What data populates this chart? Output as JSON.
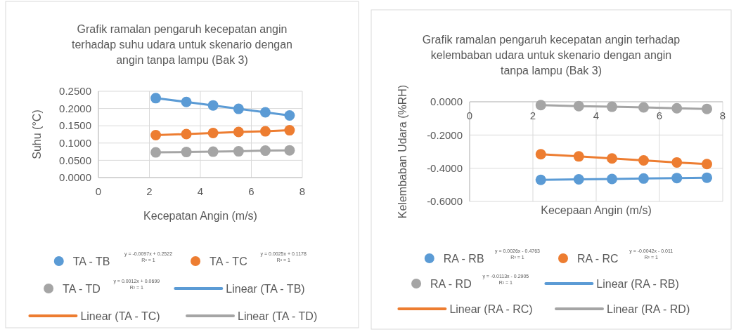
{
  "chart_data": [
    {
      "type": "scatter",
      "title": "Grafik ramalan pengaruh kecepatan angin terhadap suhu udara untuk skenario dengan angin tanpa lampu (Bak 3)",
      "xlabel": "Kecepatan Angin (m/s)",
      "ylabel": "Suhu (°C)",
      "x": [
        2.25,
        3.45,
        4.5,
        5.5,
        6.55,
        7.5
      ],
      "xlim": [
        0,
        8
      ],
      "xticks": [
        0,
        2,
        4,
        6,
        8
      ],
      "ylim": [
        0,
        0.25
      ],
      "yticks": [
        {
          "value": 0,
          "label": "0.0000"
        },
        {
          "value": 0.05,
          "label": "0.0500"
        },
        {
          "value": 0.1,
          "label": "0.1000"
        },
        {
          "value": 0.15,
          "label": "0.1500"
        },
        {
          "value": 0.2,
          "label": "0.2000"
        },
        {
          "value": 0.25,
          "label": "0.2500"
        }
      ],
      "grid": true,
      "legend": "bottom",
      "series": [
        {
          "name": "TA - TB",
          "marker": "circle",
          "color": "#5b9bd5",
          "values": [
            0.23,
            0.219,
            0.209,
            0.199,
            0.189,
            0.18
          ]
        },
        {
          "name": "TA - TC",
          "marker": "circle",
          "color": "#ed7d31",
          "values": [
            0.123,
            0.126,
            0.129,
            0.132,
            0.134,
            0.137
          ]
        },
        {
          "name": "TA - TD",
          "marker": "circle",
          "color": "#a5a5a5",
          "values": [
            0.073,
            0.074,
            0.075,
            0.076,
            0.078,
            0.079
          ]
        },
        {
          "name": "Linear (TA - TB)",
          "type": "line",
          "color": "#5b9bd5",
          "values": [
            0.23,
            0.219,
            0.209,
            0.199,
            0.189,
            0.18
          ]
        },
        {
          "name": "Linear (TA - TC)",
          "type": "line",
          "color": "#ed7d31",
          "values": [
            0.123,
            0.126,
            0.129,
            0.132,
            0.134,
            0.137
          ]
        },
        {
          "name": "Linear (TA - TD)",
          "type": "line",
          "color": "#a5a5a5",
          "values": [
            0.073,
            0.074,
            0.075,
            0.076,
            0.078,
            0.079
          ]
        }
      ],
      "annotations": [
        "y = -0.0097x + 0.2522\nR² = 1",
        "y = 0.0025x + 0.1178\nR² = 1",
        "y = 0.0012x + 0.0699\nR² = 1"
      ]
    },
    {
      "type": "scatter",
      "title": "Grafik ramalan pengaruh kecepatan angin terhadap kelembaban udara untuk skenario dengan angin tanpa lampu (Bak 3)",
      "xlabel": "Kecepaan Angin (m/s)",
      "ylabel": "Kelembaban Udara (%RH)",
      "x": [
        2.25,
        3.45,
        4.5,
        5.5,
        6.55,
        7.5
      ],
      "xlim": [
        0,
        8
      ],
      "xticks": [
        0,
        2,
        4,
        6,
        8
      ],
      "ylim": [
        -0.6,
        0
      ],
      "yticks": [
        {
          "value": -0.6,
          "label": "-0.6000"
        },
        {
          "value": -0.4,
          "label": "-0.4000"
        },
        {
          "value": -0.2,
          "label": "-0.2000"
        },
        {
          "value": 0,
          "label": "0.0000"
        }
      ],
      "grid": true,
      "legend": "bottom",
      "series": [
        {
          "name": "RA - RB",
          "marker": "circle",
          "color": "#5b9bd5",
          "values": [
            -0.47,
            -0.467,
            -0.465,
            -0.462,
            -0.459,
            -0.457
          ]
        },
        {
          "name": "RA - RC",
          "marker": "circle",
          "color": "#ed7d31",
          "values": [
            -0.316,
            -0.329,
            -0.341,
            -0.353,
            -0.365,
            -0.375
          ]
        },
        {
          "name": "RA - RD",
          "marker": "circle",
          "color": "#a5a5a5",
          "values": [
            -0.02,
            -0.026,
            -0.03,
            -0.034,
            -0.039,
            -0.043
          ]
        },
        {
          "name": "Linear (RA - RB)",
          "type": "line",
          "color": "#5b9bd5",
          "values": [
            -0.47,
            -0.467,
            -0.465,
            -0.462,
            -0.459,
            -0.457
          ]
        },
        {
          "name": "Linear (RA - RC)",
          "type": "line",
          "color": "#ed7d31",
          "values": [
            -0.316,
            -0.329,
            -0.341,
            -0.353,
            -0.365,
            -0.375
          ]
        },
        {
          "name": "Linear (RA - RD)",
          "type": "line",
          "color": "#a5a5a5",
          "values": [
            -0.02,
            -0.026,
            -0.03,
            -0.034,
            -0.039,
            -0.043
          ]
        }
      ],
      "annotations": [
        "y = 0.0026x - 0.4763\nR² = 1",
        "y = -0.0042x - 0.011\nR² = 1",
        "y = -0.0113x - 0.2905\nR² = 1"
      ]
    }
  ]
}
